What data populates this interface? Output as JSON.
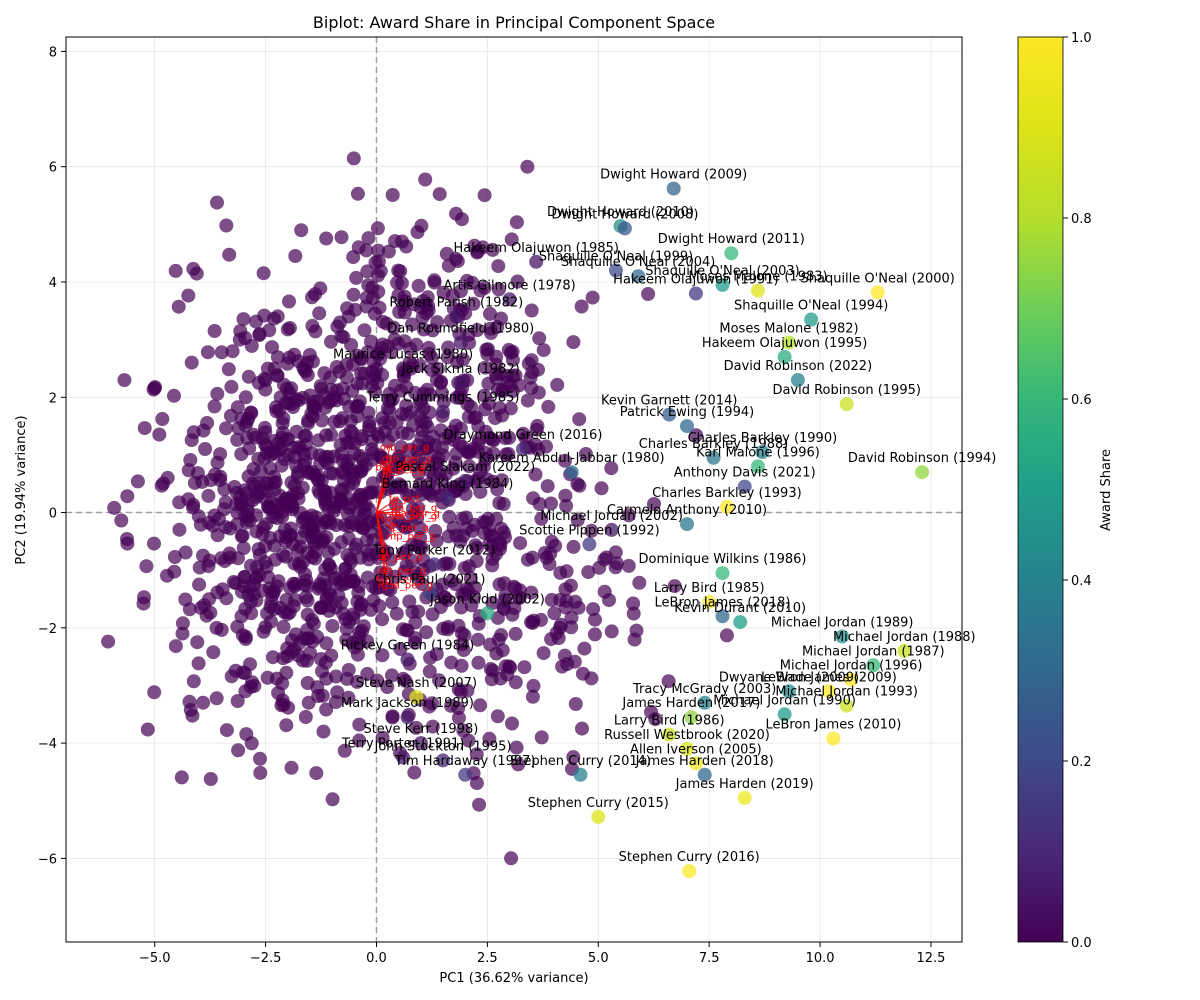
{
  "chart_data": {
    "type": "scatter",
    "title": "Biplot: Award Share in Principal Component Space",
    "xlabel": "PC1 (36.62% variance)",
    "ylabel": "PC2 (19.94% variance)",
    "xlim": [
      -7.0,
      13.2
    ],
    "ylim": [
      -7.45,
      8.25
    ],
    "x_ticks": [
      -5.0,
      -2.5,
      0.0,
      2.5,
      5.0,
      7.5,
      10.0,
      12.5
    ],
    "x_tick_labels": [
      "−5.0",
      "−2.5",
      "0.0",
      "2.5",
      "5.0",
      "7.5",
      "10.0",
      "12.5"
    ],
    "y_ticks": [
      -6,
      -4,
      -2,
      0,
      2,
      4,
      6,
      8
    ],
    "y_tick_labels": [
      "−6",
      "−4",
      "−2",
      "0",
      "2",
      "4",
      "6",
      "8"
    ],
    "grid": true,
    "reference_lines": {
      "x": 0,
      "y": 0,
      "style": "dashed"
    },
    "colorbar": {
      "label": "Award Share",
      "colormap": "viridis",
      "range": [
        0.0,
        1.0
      ],
      "ticks": [
        0.0,
        0.2,
        0.4,
        0.6,
        0.8,
        1.0
      ],
      "tick_labels": [
        "0.0",
        "0.2",
        "0.4",
        "0.6",
        "0.8",
        "1.0"
      ]
    },
    "background_cloud": {
      "award_share": 0.0,
      "color": "#440154",
      "approx_points": 1400
    },
    "labeled_points": [
      {
        "name": "Dwight Howard (2009)",
        "x": 6.7,
        "y": 5.62,
        "share": 0.28
      },
      {
        "name": "Dwight Howard (2010)",
        "x": 5.5,
        "y": 4.97,
        "share": 0.45
      },
      {
        "name": "Dwight Howard (2008)",
        "x": 5.6,
        "y": 4.93,
        "share": 0.25
      },
      {
        "name": "Dwight Howard (2011)",
        "x": 8.0,
        "y": 4.5,
        "share": 0.6
      },
      {
        "name": "Shaquille O'Neal (1999)",
        "x": 5.4,
        "y": 4.2,
        "share": 0.2
      },
      {
        "name": "Hakeem Olajuwon (1985)",
        "x": 3.6,
        "y": 4.35,
        "share": 0.05
      },
      {
        "name": "Shaquille O'Neal (2004)",
        "x": 5.9,
        "y": 4.1,
        "share": 0.3
      },
      {
        "name": "Shaquille O'Neal (2003)",
        "x": 7.8,
        "y": 3.95,
        "share": 0.5
      },
      {
        "name": "Shaquille O'Neal (2000)",
        "x": 11.3,
        "y": 3.82,
        "share": 1.0
      },
      {
        "name": "Shaquille O'Neal (1994)",
        "x": 9.8,
        "y": 3.35,
        "share": 0.5
      },
      {
        "name": "Hakeem Olajuwon (1991)",
        "x": 7.2,
        "y": 3.8,
        "share": 0.15
      },
      {
        "name": "Moses Malone (1983)",
        "x": 8.6,
        "y": 3.85,
        "share": 0.9
      },
      {
        "name": "Artis Gilmore (1978)",
        "x": 3.0,
        "y": 3.7,
        "share": 0.05
      },
      {
        "name": "Robert Parish (1982)",
        "x": 1.8,
        "y": 3.4,
        "share": 0.05
      },
      {
        "name": "Moses Malone (1982)",
        "x": 9.3,
        "y": 2.95,
        "share": 0.8
      },
      {
        "name": "Dan Roundfield (1980)",
        "x": 1.9,
        "y": 2.95,
        "share": 0.05
      },
      {
        "name": "Hakeem Olajuwon (1995)",
        "x": 9.2,
        "y": 2.7,
        "share": 0.55
      },
      {
        "name": "Maurice Lucas (1980)",
        "x": 0.6,
        "y": 2.5,
        "share": 0.0
      },
      {
        "name": "Jack Sikma (1982)",
        "x": 1.9,
        "y": 2.25,
        "share": 0.05
      },
      {
        "name": "David Robinson (2022)",
        "x": 9.5,
        "y": 2.3,
        "share": 0.4
      },
      {
        "name": "David Robinson (1995)",
        "x": 10.6,
        "y": 1.88,
        "share": 0.85
      },
      {
        "name": "Terry Cummings (1985)",
        "x": 1.5,
        "y": 1.75,
        "share": 0.05
      },
      {
        "name": "Kevin Garnett (2014)",
        "x": 6.6,
        "y": 1.7,
        "share": 0.25
      },
      {
        "name": "Patrick Ewing (1994)",
        "x": 7.0,
        "y": 1.5,
        "share": 0.3
      },
      {
        "name": "Charles Barkley (1988)",
        "x": 7.6,
        "y": 0.95,
        "share": 0.35
      },
      {
        "name": "Charles Barkley (1990)",
        "x": 8.7,
        "y": 1.05,
        "share": 0.4
      },
      {
        "name": "David Robinson (1994)",
        "x": 12.3,
        "y": 0.7,
        "share": 0.75
      },
      {
        "name": "Karl Malone (1996)",
        "x": 8.6,
        "y": 0.8,
        "share": 0.6
      },
      {
        "name": "Draymond Green (2016)",
        "x": 3.3,
        "y": 1.1,
        "share": 0.1
      },
      {
        "name": "Kareem Abdul-Jabbar (1980)",
        "x": 4.4,
        "y": 0.7,
        "share": 0.3
      },
      {
        "name": "Anthony Davis (2021)",
        "x": 8.3,
        "y": 0.45,
        "share": 0.2
      },
      {
        "name": "Pascal Siakam (2022)",
        "x": 2.0,
        "y": 0.55,
        "share": 0.05
      },
      {
        "name": "Bernard King (1984)",
        "x": 1.6,
        "y": 0.25,
        "share": 0.1
      },
      {
        "name": "Charles Barkley (1993)",
        "x": 7.9,
        "y": 0.1,
        "share": 1.0
      },
      {
        "name": "Michael Jordan (2002)",
        "x": 5.3,
        "y": -0.3,
        "share": 0.05
      },
      {
        "name": "Carmelo Anthony (2010)",
        "x": 7.0,
        "y": -0.2,
        "share": 0.35
      },
      {
        "name": "Scottie Pippen (1992)",
        "x": 4.8,
        "y": -0.55,
        "share": 0.15
      },
      {
        "name": "Tony Parker (2012)",
        "x": 1.3,
        "y": -0.9,
        "share": 0.1
      },
      {
        "name": "Dominique Wilkins (1986)",
        "x": 7.8,
        "y": -1.05,
        "share": 0.6
      },
      {
        "name": "Larry Bird (1985)",
        "x": 7.5,
        "y": -1.55,
        "share": 1.0
      },
      {
        "name": "Chris Paul (2021)",
        "x": 1.2,
        "y": -1.4,
        "share": 0.2
      },
      {
        "name": "Jason Kidd (2002)",
        "x": 2.5,
        "y": -1.75,
        "share": 0.55
      },
      {
        "name": "LeBron James (2018)",
        "x": 7.8,
        "y": -1.8,
        "share": 0.3
      },
      {
        "name": "Kevin Durant (2010)",
        "x": 8.2,
        "y": -1.9,
        "share": 0.5
      },
      {
        "name": "Michael Jordan (1989)",
        "x": 10.5,
        "y": -2.15,
        "share": 0.45
      },
      {
        "name": "Michael Jordan (1988)",
        "x": 11.9,
        "y": -2.4,
        "share": 0.85
      },
      {
        "name": "Michael Jordan (1987)",
        "x": 11.2,
        "y": -2.65,
        "share": 0.6
      },
      {
        "name": "Michael Jordan (1996)",
        "x": 10.7,
        "y": -2.9,
        "share": 1.0
      },
      {
        "name": "LeBron James (2009)",
        "x": 10.2,
        "y": -3.1,
        "share": 1.0
      },
      {
        "name": "Dwyane Wade (2009)",
        "x": 9.3,
        "y": -3.1,
        "share": 0.45
      },
      {
        "name": "Michael Jordan (1993)",
        "x": 10.6,
        "y": -3.35,
        "share": 0.85
      },
      {
        "name": "Michael Jordan (1990)",
        "x": 9.2,
        "y": -3.5,
        "share": 0.5
      },
      {
        "name": "LeBron James (2010)",
        "x": 10.3,
        "y": -3.92,
        "share": 1.0
      },
      {
        "name": "Tracy McGrady (2003)",
        "x": 7.4,
        "y": -3.3,
        "share": 0.4
      },
      {
        "name": "James Harden (2017)",
        "x": 7.1,
        "y": -3.55,
        "share": 0.75
      },
      {
        "name": "Russell Westbrook (2020)",
        "x": 7.0,
        "y": -4.1,
        "share": 0.9
      },
      {
        "name": "Allen Iverson (2005)",
        "x": 7.2,
        "y": -4.35,
        "share": 0.95
      },
      {
        "name": "Larry Bird (1986)",
        "x": 6.6,
        "y": -3.85,
        "share": 0.85
      },
      {
        "name": "Rickey Green (1984)",
        "x": 0.7,
        "y": -2.55,
        "share": 0.05
      },
      {
        "name": "Steve Nash (2007)",
        "x": 0.9,
        "y": -3.2,
        "share": 0.9
      },
      {
        "name": "Mark Jackson (1989)",
        "x": 0.7,
        "y": -3.55,
        "share": 0.05
      },
      {
        "name": "Steve Kerr (1998)",
        "x": 1.0,
        "y": -4.0,
        "share": 0.05
      },
      {
        "name": "Terry Porter (1991)",
        "x": 0.6,
        "y": -4.25,
        "share": 0.05
      },
      {
        "name": "John Stockton (1995)",
        "x": 1.5,
        "y": -4.3,
        "share": 0.1
      },
      {
        "name": "Tim Hardaway (1997)",
        "x": 2.0,
        "y": -4.55,
        "share": 0.15
      },
      {
        "name": "Stephen Curry (2014)",
        "x": 4.6,
        "y": -4.55,
        "share": 0.4
      },
      {
        "name": "James Harden (2018)",
        "x": 7.4,
        "y": -4.55,
        "share": 0.3
      },
      {
        "name": "James Harden (2019)",
        "x": 8.3,
        "y": -4.95,
        "share": 0.95
      },
      {
        "name": "Stephen Curry (2015)",
        "x": 5.0,
        "y": -5.28,
        "share": 0.9
      },
      {
        "name": "Stephen Curry (2016)",
        "x": 7.05,
        "y": -6.22,
        "share": 1.0
      }
    ],
    "loading_vectors": [
      {
        "name": "orb_per_g",
        "x": 0.3,
        "y": 1.15
      },
      {
        "name": "drb_per_g",
        "x": 0.35,
        "y": 0.95
      },
      {
        "name": "trb_per_g",
        "x": 0.3,
        "y": 0.85
      },
      {
        "name": "blk_per_g",
        "x": 0.2,
        "y": 0.8
      },
      {
        "name": "pf_per_g",
        "x": 0.35,
        "y": 0.75
      },
      {
        "name": "fg_pct",
        "x": 0.5,
        "y": 0.25
      },
      {
        "name": "fga_per_g",
        "x": 0.55,
        "y": 0.0
      },
      {
        "name": "pts_per_g",
        "x": 0.5,
        "y": -0.05
      },
      {
        "name": "fta_per_g",
        "x": 0.55,
        "y": 0.1
      },
      {
        "name": "ft_per_g",
        "x": 0.5,
        "y": -0.25
      },
      {
        "name": "mp_per_g",
        "x": 0.45,
        "y": -0.4
      },
      {
        "name": "stl_per_g",
        "x": 0.25,
        "y": -0.75
      },
      {
        "name": "ast_per_g",
        "x": 0.25,
        "y": -1.0
      },
      {
        "name": "fg3_per_g",
        "x": 0.2,
        "y": -1.15
      },
      {
        "name": "fg3a_per_g",
        "x": 0.25,
        "y": -1.25
      }
    ]
  }
}
